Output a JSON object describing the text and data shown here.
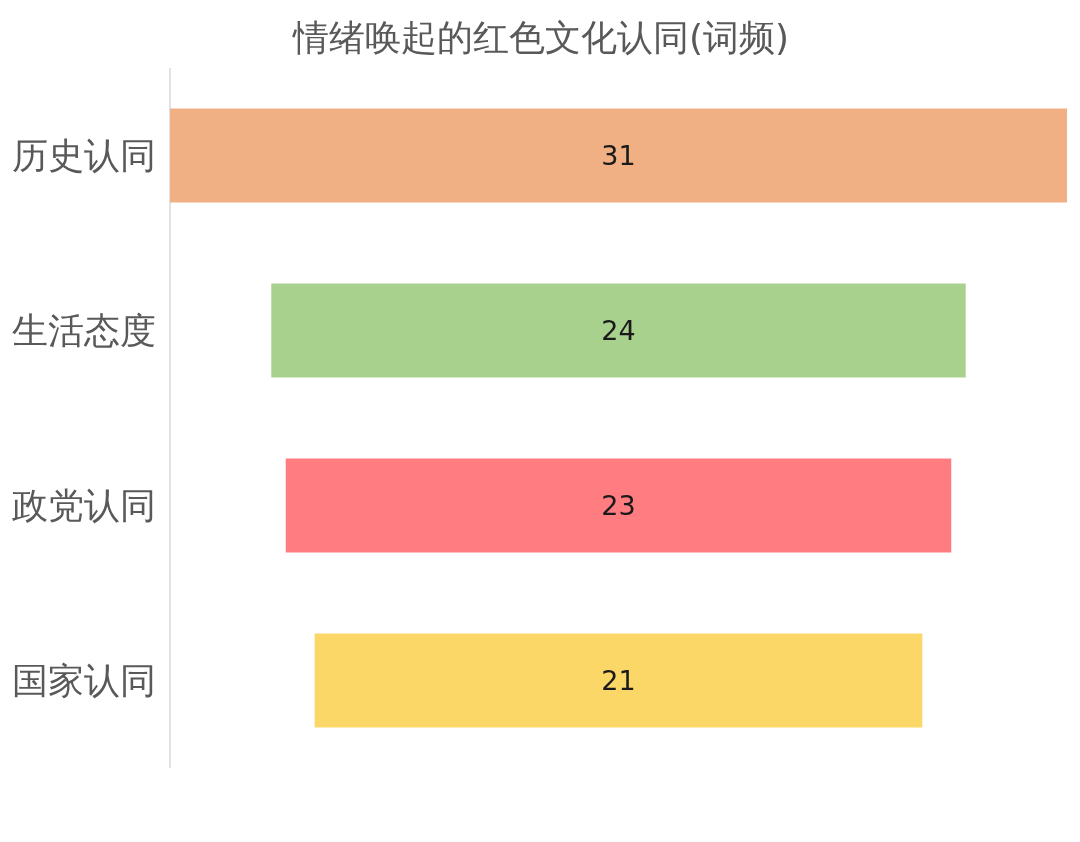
{
  "chart_data": {
    "type": "other",
    "title": "情绪唤起的红色文化认同(词频)",
    "categories": [
      "历史认同",
      "生活态度",
      "政党认同",
      "国家认同"
    ],
    "values": [
      31,
      24,
      23,
      21
    ],
    "colors": [
      "#f0b084",
      "#a9d18e",
      "#ff7c80",
      "#fad766"
    ],
    "data_labels": true
  }
}
